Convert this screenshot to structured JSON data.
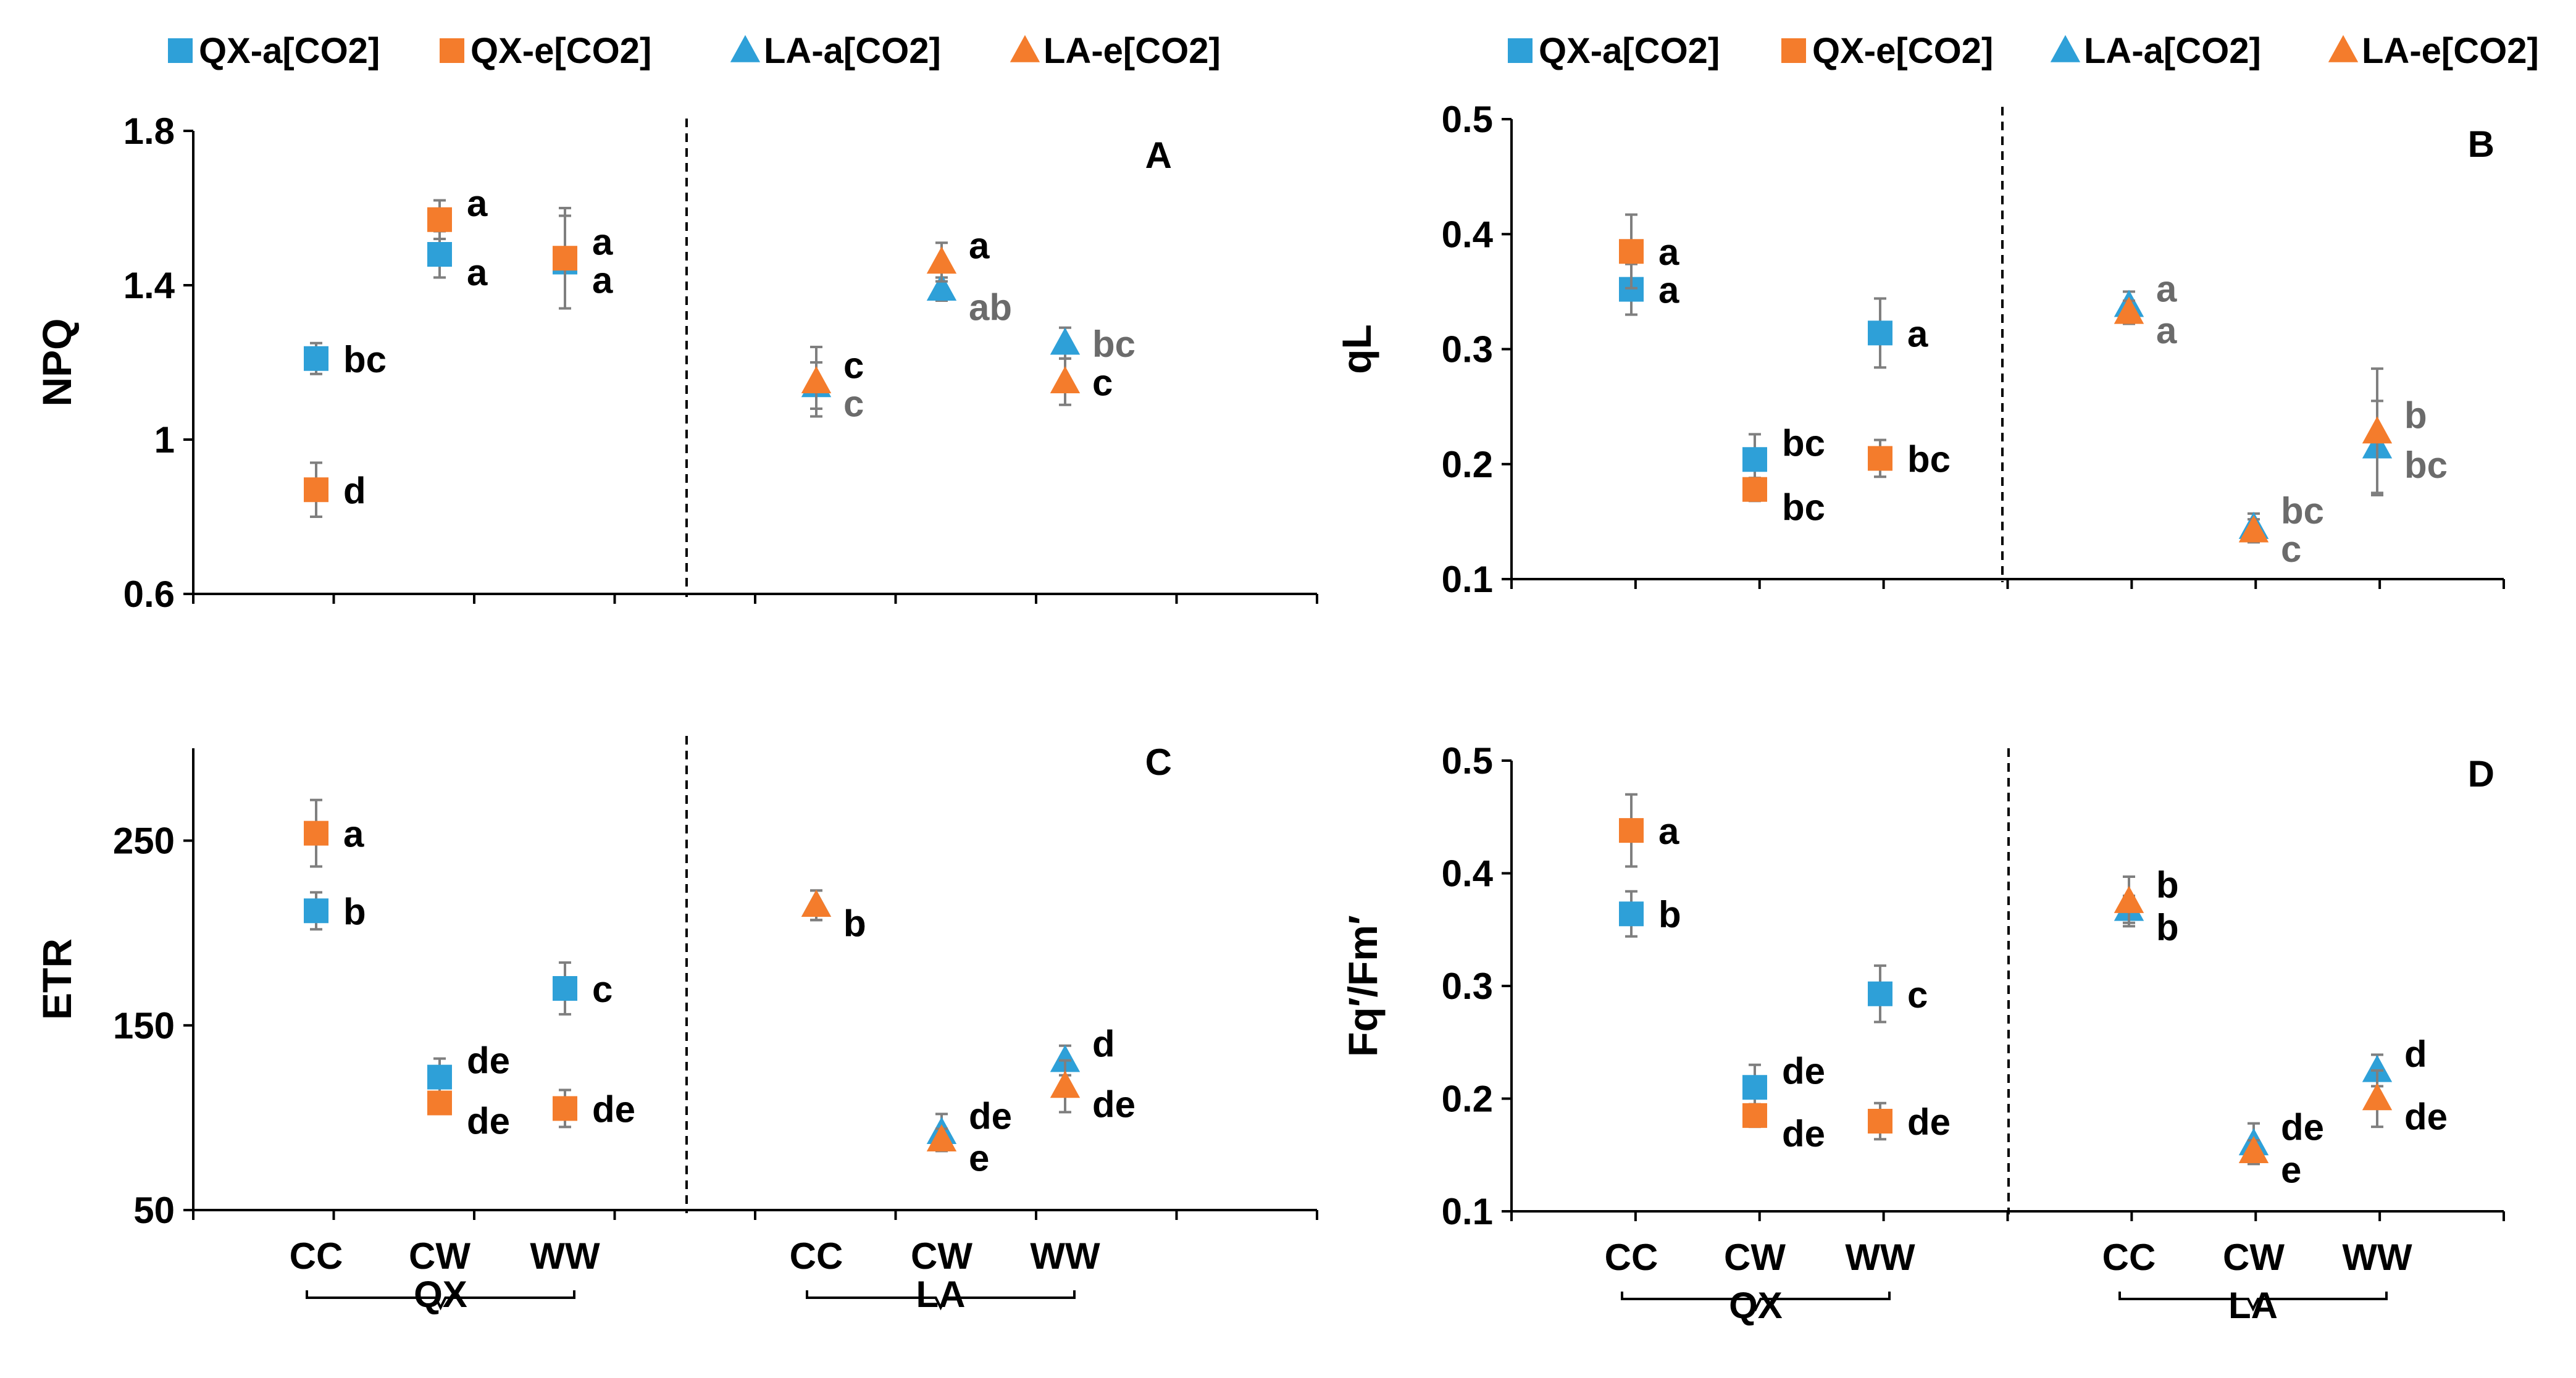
{
  "colors": {
    "blue": "#2ea0d8",
    "orange": "#f47c2c",
    "axis": "#000000",
    "gray_letter": "#6b6b6b",
    "errbar": "#7f7f7f"
  },
  "legend": [
    {
      "label": "QX-a[CO2]",
      "marker": "square",
      "color": "blue"
    },
    {
      "label": "QX-e[CO2]",
      "marker": "square",
      "color": "orange"
    },
    {
      "label": "LA-a[CO2]",
      "marker": "triangle",
      "color": "blue"
    },
    {
      "label": "LA-e[CO2]",
      "marker": "triangle",
      "color": "orange"
    }
  ],
  "chart_data": [
    {
      "panel": "A",
      "type": "scatter",
      "ylabel": "NPQ",
      "ylim": [
        0.6,
        1.8
      ],
      "yticks": [
        "0.6",
        "1",
        "1.4",
        "1.8"
      ],
      "categories": [
        "CC",
        "CW",
        "WW",
        "CC",
        "CW",
        "WW"
      ],
      "groups": [
        "QX",
        "LA"
      ],
      "series": [
        {
          "name": "QX-a[CO2]",
          "x": [
            0,
            1,
            2
          ],
          "values": [
            1.21,
            1.48,
            1.46
          ],
          "err": [
            0.04,
            0.06,
            0.12
          ],
          "letters": [
            "bc",
            "a",
            "a"
          ],
          "letter_color": "black"
        },
        {
          "name": "QX-e[CO2]",
          "x": [
            0,
            1,
            2
          ],
          "values": [
            0.87,
            1.57,
            1.47
          ],
          "err": [
            0.07,
            0.05,
            0.13
          ],
          "letters": [
            "d",
            "a",
            "a"
          ],
          "letter_color": "black"
        },
        {
          "name": "LA-a[CO2]",
          "x": [
            3,
            4,
            5
          ],
          "values": [
            1.14,
            1.39,
            1.25
          ],
          "err": [
            0.06,
            0.03,
            0.04
          ],
          "letters": [
            "c",
            "ab",
            "bc"
          ],
          "letter_color": "gray"
        },
        {
          "name": "LA-e[CO2]",
          "x": [
            3,
            4,
            5
          ],
          "values": [
            1.15,
            1.46,
            1.15
          ],
          "err": [
            0.09,
            0.05,
            0.06
          ],
          "letters": [
            "c",
            "a",
            "c"
          ],
          "letter_color": "black"
        }
      ]
    },
    {
      "panel": "B",
      "type": "scatter",
      "ylabel": "qL",
      "ylim": [
        0.1,
        0.5
      ],
      "yticks": [
        "0.1",
        "0.2",
        "0.3",
        "0.4",
        "0.5"
      ],
      "categories": [
        "CC",
        "CW",
        "WW",
        "CC",
        "CW",
        "WW"
      ],
      "groups": [
        "QX",
        "LA"
      ],
      "series": [
        {
          "name": "QX-a[CO2]",
          "x": [
            0,
            1,
            2
          ],
          "values": [
            0.352,
            0.204,
            0.314
          ],
          "err": [
            0.022,
            0.022,
            0.03
          ],
          "letters": [
            "a",
            "bc",
            "a"
          ],
          "letter_color": "black"
        },
        {
          "name": "QX-e[CO2]",
          "x": [
            0,
            1,
            2
          ],
          "values": [
            0.385,
            0.178,
            0.205
          ],
          "err": [
            0.032,
            0.01,
            0.016
          ],
          "letters": [
            "a",
            "bc",
            "bc"
          ],
          "letter_color": "black"
        },
        {
          "name": "LA-a[CO2]",
          "x": [
            3,
            4,
            5
          ],
          "values": [
            0.338,
            0.145,
            0.215
          ],
          "err": [
            0.012,
            0.012,
            0.04
          ],
          "letters": [
            "a",
            "bc",
            "bc"
          ],
          "letter_color": "gray"
        },
        {
          "name": "LA-e[CO2]",
          "x": [
            3,
            4,
            5
          ],
          "values": [
            0.332,
            0.142,
            0.228
          ],
          "err": [
            0.01,
            0.01,
            0.055
          ],
          "letters": [
            "a",
            "c",
            "b"
          ],
          "letter_color": "gray"
        }
      ]
    },
    {
      "panel": "C",
      "type": "scatter",
      "ylabel": "ETR",
      "ylim": [
        50,
        300
      ],
      "yticks": [
        "50",
        "150",
        "250"
      ],
      "categories": [
        "CC",
        "CW",
        "WW",
        "CC",
        "CW",
        "WW"
      ],
      "groups": [
        "QX",
        "LA"
      ],
      "series": [
        {
          "name": "QX-a[CO2]",
          "x": [
            0,
            1,
            2
          ],
          "values": [
            212,
            122,
            170
          ],
          "err": [
            10,
            10,
            14
          ],
          "letters": [
            "b",
            "de",
            "c"
          ],
          "letter_color": "black"
        },
        {
          "name": "QX-e[CO2]",
          "x": [
            0,
            1,
            2
          ],
          "values": [
            254,
            108,
            105
          ],
          "err": [
            18,
            6,
            10
          ],
          "letters": [
            "a",
            "de",
            "de"
          ],
          "letter_color": "black"
        },
        {
          "name": "LA-a[CO2]",
          "x": [
            3,
            4,
            5
          ],
          "values": [
            215,
            92,
            131
          ],
          "err": [
            8,
            10,
            8
          ],
          "letters": [
            "b",
            "de",
            "d"
          ],
          "letter_color": "black"
        },
        {
          "name": "LA-e[CO2]",
          "x": [
            3,
            4,
            5
          ],
          "values": [
            215,
            88,
            117
          ],
          "err": [
            8,
            6,
            14
          ],
          "letters": [
            "b",
            "e",
            "de"
          ],
          "letter_color": "black"
        }
      ]
    },
    {
      "panel": "D",
      "type": "scatter",
      "ylabel": "Fq′/Fm′",
      "ylim": [
        0.1,
        0.5
      ],
      "yticks": [
        "0.1",
        "0.2",
        "0.3",
        "0.4",
        "0.5"
      ],
      "categories": [
        "CC",
        "CW",
        "WW",
        "CC",
        "CW",
        "WW"
      ],
      "groups": [
        "QX",
        "LA"
      ],
      "series": [
        {
          "name": "QX-a[CO2]",
          "x": [
            0,
            1,
            2
          ],
          "values": [
            0.364,
            0.21,
            0.293
          ],
          "err": [
            0.02,
            0.02,
            0.025
          ],
          "letters": [
            "b",
            "de",
            "c"
          ],
          "letter_color": "black"
        },
        {
          "name": "QX-e[CO2]",
          "x": [
            0,
            1,
            2
          ],
          "values": [
            0.438,
            0.185,
            0.18
          ],
          "err": [
            0.032,
            0.01,
            0.016
          ],
          "letters": [
            "a",
            "de",
            "de"
          ],
          "letter_color": "black"
        },
        {
          "name": "LA-a[CO2]",
          "x": [
            3,
            4,
            5
          ],
          "values": [
            0.368,
            0.16,
            0.225
          ],
          "err": [
            0.012,
            0.018,
            0.014
          ],
          "letters": [
            "b",
            "de",
            "d"
          ],
          "letter_color": "black"
        },
        {
          "name": "LA-e[CO2]",
          "x": [
            3,
            4,
            5
          ],
          "values": [
            0.375,
            0.153,
            0.2
          ],
          "err": [
            0.022,
            0.01,
            0.025
          ],
          "letters": [
            "b",
            "e",
            "de"
          ],
          "letter_color": "black"
        }
      ]
    }
  ]
}
